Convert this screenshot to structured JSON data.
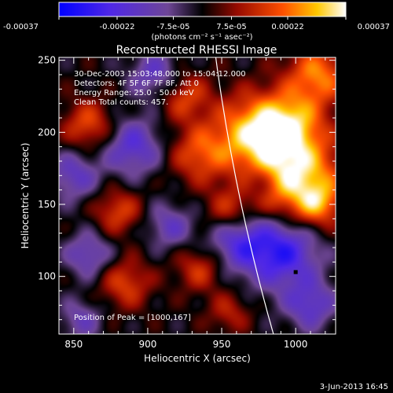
{
  "chart_data": {
    "type": "heatmap",
    "title": "Reconstructed RHESSI Image",
    "xlabel": "Heliocentric X (arcsec)",
    "ylabel": "Heliocentric Y (arcsec)",
    "xlim": [
      840,
      1027
    ],
    "ylim": [
      60,
      252
    ],
    "xticks": [
      850,
      900,
      950,
      1000
    ],
    "yticks": [
      100,
      150,
      200,
      250
    ],
    "colorbar": {
      "ticks": [
        "-0.00037",
        "-0.00022",
        "-7.5e-05",
        "7.5e-05",
        "0.00022",
        "0.00037"
      ],
      "tick_values": [
        -0.00037,
        -0.00022,
        -7.5e-05,
        7.5e-05,
        0.00022,
        0.00037
      ],
      "range": [
        -0.00037,
        0.00037
      ],
      "units": "(photons cm⁻² s⁻¹ asec⁻²)"
    },
    "annotations": {
      "time_range": "30-Dec-2003 15:03:48.000 to 15:04:12.000",
      "detectors": "Detectors: 4F 5F 6F 7F 8F, Att 0",
      "energy": "Energy Range: 25.0 - 50.0 keV",
      "clean": "Clean     Total counts: 457.",
      "peak": "Position of Peak = [1000,167]"
    },
    "blobs": [
      {
        "x": 1000,
        "y": 167,
        "s": 22,
        "a": 1.0
      },
      {
        "x": 970,
        "y": 200,
        "s": 18,
        "a": 0.8
      },
      {
        "x": 995,
        "y": 205,
        "s": 16,
        "a": 0.75
      },
      {
        "x": 1015,
        "y": 240,
        "s": 15,
        "a": 0.7
      },
      {
        "x": 935,
        "y": 185,
        "s": 14,
        "a": 0.55
      },
      {
        "x": 925,
        "y": 225,
        "s": 12,
        "a": 0.5
      },
      {
        "x": 860,
        "y": 205,
        "s": 12,
        "a": 0.55
      },
      {
        "x": 880,
        "y": 145,
        "s": 11,
        "a": 0.5
      },
      {
        "x": 885,
        "y": 95,
        "s": 12,
        "a": 0.5
      },
      {
        "x": 935,
        "y": 105,
        "s": 11,
        "a": 0.45
      },
      {
        "x": 955,
        "y": 145,
        "s": 11,
        "a": 0.45
      },
      {
        "x": 955,
        "y": 75,
        "s": 10,
        "a": 0.35
      },
      {
        "x": 1015,
        "y": 150,
        "s": 10,
        "a": 0.45
      },
      {
        "x": 990,
        "y": 118,
        "s": 18,
        "a": -0.9
      },
      {
        "x": 960,
        "y": 125,
        "s": 14,
        "a": -0.55
      },
      {
        "x": 890,
        "y": 190,
        "s": 14,
        "a": -0.6
      },
      {
        "x": 850,
        "y": 170,
        "s": 12,
        "a": -0.5
      },
      {
        "x": 905,
        "y": 240,
        "s": 12,
        "a": -0.5
      },
      {
        "x": 860,
        "y": 115,
        "s": 11,
        "a": -0.5
      },
      {
        "x": 915,
        "y": 135,
        "s": 11,
        "a": -0.45
      },
      {
        "x": 1010,
        "y": 80,
        "s": 12,
        "a": -0.55
      },
      {
        "x": 855,
        "y": 70,
        "s": 10,
        "a": -0.4
      },
      {
        "x": 975,
        "y": 165,
        "s": 9,
        "a": -0.3
      }
    ]
  },
  "footer": {
    "date": "3-Jun-2013 16:45"
  },
  "colors": {
    "background": "#000000",
    "foreground": "#ffffff",
    "peak_marker": "#000000",
    "limb": "#ffffff"
  }
}
